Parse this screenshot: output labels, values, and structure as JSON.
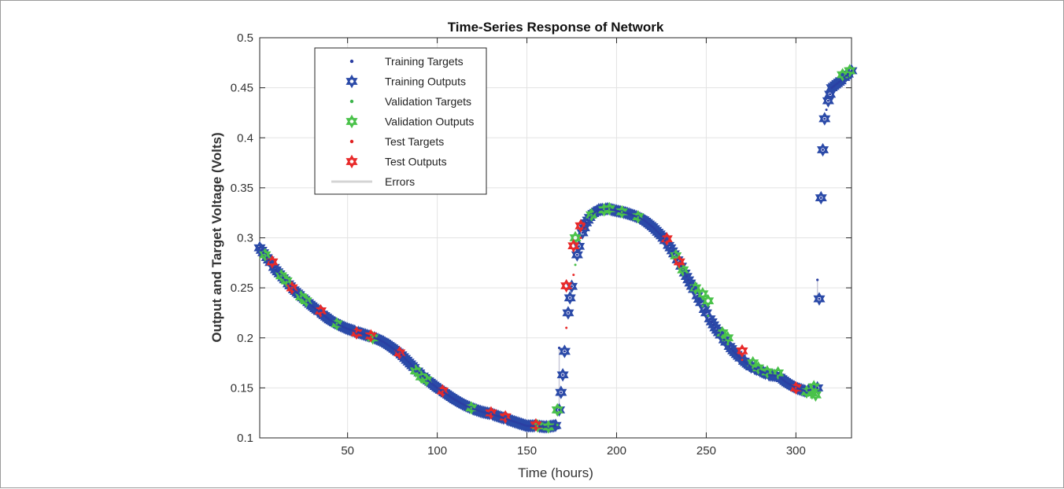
{
  "chart_data": {
    "type": "scatter",
    "title": "Time-Series Response of Network",
    "xlabel": "Time (hours)",
    "ylabel": "Output and Target Voltage (Volts)",
    "xlim": [
      1,
      331
    ],
    "ylim": [
      0.1,
      0.5
    ],
    "xticks": [
      50,
      100,
      150,
      200,
      250,
      300
    ],
    "yticks": [
      0.1,
      0.15,
      0.2,
      0.25,
      0.3,
      0.35,
      0.4,
      0.45,
      0.5
    ],
    "xtick_labels": [
      "50",
      "100",
      "150",
      "200",
      "250",
      "300"
    ],
    "ytick_labels": [
      "0.1",
      "0.15",
      "0.2",
      "0.25",
      "0.3",
      "0.35",
      "0.4",
      "0.45",
      "0.5"
    ],
    "grid": true,
    "legend_position": "top-left",
    "curve": {
      "x": [
        1,
        10,
        20,
        30,
        40,
        45,
        50,
        55,
        60,
        65,
        70,
        75,
        80,
        85,
        90,
        95,
        100,
        105,
        110,
        115,
        120,
        125,
        130,
        135,
        140,
        145,
        150,
        155,
        160,
        165,
        167,
        168,
        170,
        172,
        174,
        176,
        178,
        180,
        183,
        186,
        190,
        195,
        200,
        205,
        210,
        215,
        220,
        225,
        230,
        235,
        240,
        245,
        250,
        255,
        260,
        265,
        270,
        275,
        280,
        285,
        290,
        295,
        300,
        305,
        308,
        310,
        312,
        313,
        314,
        315,
        316,
        318,
        320,
        325,
        331
      ],
      "y": [
        0.29,
        0.268,
        0.248,
        0.232,
        0.218,
        0.213,
        0.209,
        0.206,
        0.203,
        0.2,
        0.196,
        0.19,
        0.183,
        0.174,
        0.165,
        0.157,
        0.15,
        0.144,
        0.138,
        0.133,
        0.129,
        0.126,
        0.124,
        0.121,
        0.118,
        0.115,
        0.112,
        0.112,
        0.111,
        0.112,
        0.113,
        0.128,
        0.163,
        0.21,
        0.24,
        0.263,
        0.283,
        0.3,
        0.315,
        0.323,
        0.328,
        0.329,
        0.327,
        0.325,
        0.322,
        0.318,
        0.311,
        0.302,
        0.29,
        0.275,
        0.258,
        0.242,
        0.225,
        0.21,
        0.198,
        0.187,
        0.178,
        0.171,
        0.167,
        0.163,
        0.162,
        0.155,
        0.15,
        0.147,
        0.148,
        0.145,
        0.15,
        0.239,
        0.34,
        0.388,
        0.419,
        0.437,
        0.45,
        0.457,
        0.467
      ]
    },
    "series": [
      {
        "name": "Training Targets",
        "marker": "dot",
        "color": "#2b3fa3"
      },
      {
        "name": "Training Outputs",
        "marker": "hexagram",
        "color": "#2b4aa8"
      },
      {
        "name": "Validation Targets",
        "marker": "dot",
        "color": "#3cb44b"
      },
      {
        "name": "Validation Outputs",
        "marker": "hexagram",
        "color": "#4ac24a"
      },
      {
        "name": "Test Targets",
        "marker": "dot",
        "color": "#e02020"
      },
      {
        "name": "Test Outputs",
        "marker": "hexagram",
        "color": "#e82a2a"
      },
      {
        "name": "Errors",
        "marker": "line",
        "color": "#d4d4d4"
      }
    ],
    "validation_points": [
      [
        4,
        0.283
      ],
      [
        13,
        0.262
      ],
      [
        16,
        0.257
      ],
      [
        24,
        0.241
      ],
      [
        27,
        0.237
      ],
      [
        44,
        0.214
      ],
      [
        64,
        0.2
      ],
      [
        88,
        0.167
      ],
      [
        91,
        0.161
      ],
      [
        94,
        0.158
      ],
      [
        119,
        0.13
      ],
      [
        156,
        0.112
      ],
      [
        162,
        0.111
      ],
      [
        167,
        0.128
      ],
      [
        177,
        0.3
      ],
      [
        186,
        0.323
      ],
      [
        193,
        0.328
      ],
      [
        196,
        0.329
      ],
      [
        203,
        0.326
      ],
      [
        212,
        0.321
      ],
      [
        233,
        0.282
      ],
      [
        237,
        0.268
      ],
      [
        244,
        0.25
      ],
      [
        248,
        0.244
      ],
      [
        251,
        0.237
      ],
      [
        259,
        0.205
      ],
      [
        262,
        0.2
      ],
      [
        276,
        0.175
      ],
      [
        279,
        0.17
      ],
      [
        284,
        0.166
      ],
      [
        290,
        0.165
      ],
      [
        306,
        0.146
      ],
      [
        309,
        0.145
      ],
      [
        310,
        0.151
      ],
      [
        311,
        0.143
      ],
      [
        326,
        0.463
      ],
      [
        330,
        0.467
      ]
    ],
    "test_points": [
      [
        8,
        0.276
      ],
      [
        19,
        0.25
      ],
      [
        35,
        0.227
      ],
      [
        55,
        0.205
      ],
      [
        63,
        0.202
      ],
      [
        79,
        0.185
      ],
      [
        103,
        0.147
      ],
      [
        130,
        0.125
      ],
      [
        138,
        0.121
      ],
      [
        155,
        0.113
      ],
      [
        172,
        0.252
      ],
      [
        176,
        0.292
      ],
      [
        180,
        0.312
      ],
      [
        228,
        0.299
      ],
      [
        235,
        0.276
      ],
      [
        270,
        0.187
      ],
      [
        300,
        0.15
      ]
    ],
    "error_segments": [
      [
        168,
        0.128,
        0.19
      ],
      [
        312,
        0.239,
        0.258
      ]
    ]
  }
}
